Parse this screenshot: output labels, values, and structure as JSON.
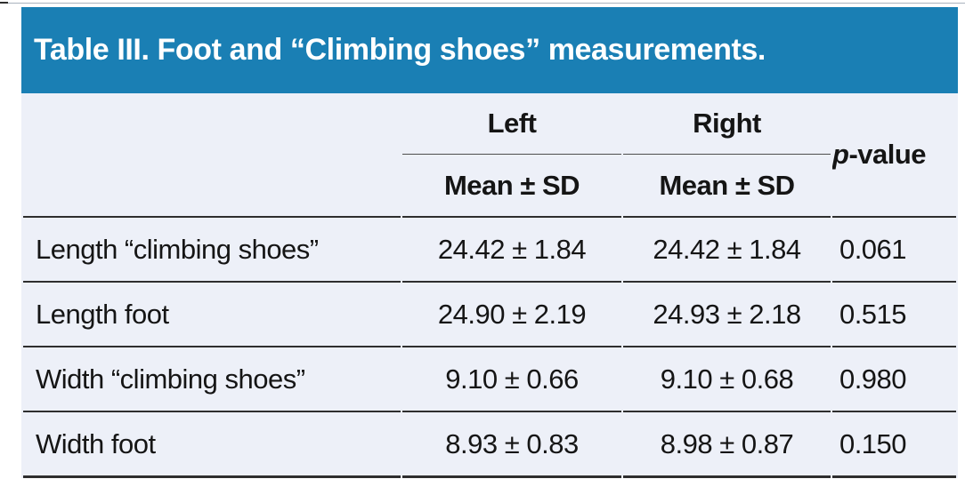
{
  "title": "Table III. Foot and “Climbing shoes” measurements.",
  "header": {
    "left_group": "Left",
    "right_group": "Right",
    "mean_sd_left": "Mean ± SD",
    "mean_sd_right": "Mean ± SD",
    "p_italic": "p",
    "p_rest": "-value"
  },
  "rows": [
    {
      "label": "Length “climbing shoes”",
      "left": "24.42 ± 1.84",
      "right": "24.42 ± 1.84",
      "p": "0.061"
    },
    {
      "label": "Length foot",
      "left": "24.90 ± 2.19",
      "right": "24.93 ± 2.18",
      "p": "0.515"
    },
    {
      "label": "Width “climbing shoes”",
      "left": "9.10 ± 0.66",
      "right": "9.10 ± 0.68",
      "p": "0.980"
    },
    {
      "label": "Width foot",
      "left": "8.93 ± 0.83",
      "right": "8.98 ± 0.87",
      "p": "0.150"
    }
  ],
  "colors": {
    "title_bar_bg": "#1a7fb4",
    "title_text": "#ffffff",
    "body_bg": "#edf0f8",
    "rule_dark": "#2e2e2e",
    "rule_mid": "#4e4e4e",
    "text": "#151515"
  },
  "chart_data": {
    "type": "table",
    "title": "Table III. Foot and “Climbing shoes” measurements.",
    "columns": [
      "",
      "Left Mean ± SD",
      "Right Mean ± SD",
      "p-value"
    ],
    "rows": [
      [
        "Length “climbing shoes”",
        "24.42 ± 1.84",
        "24.42 ± 1.84",
        "0.061"
      ],
      [
        "Length foot",
        "24.90 ± 2.19",
        "24.93 ± 2.18",
        "0.515"
      ],
      [
        "Width “climbing shoes”",
        "9.10 ± 0.66",
        "9.10 ± 0.68",
        "0.980"
      ],
      [
        "Width foot",
        "8.93 ± 0.83",
        "8.98 ± 0.87",
        "0.150"
      ]
    ]
  }
}
